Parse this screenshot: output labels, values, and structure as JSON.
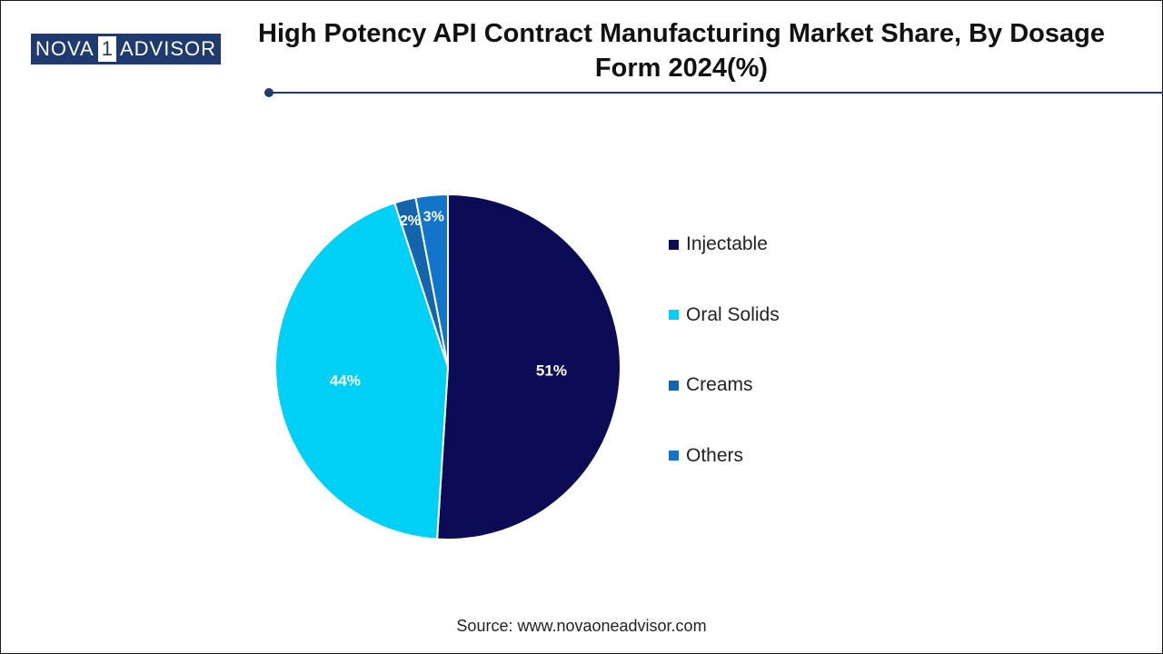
{
  "logo": {
    "part1": "NOVA",
    "digit": "1",
    "part2": "ADVISOR"
  },
  "title": "High Potency API Contract Manufacturing Market Share, By Dosage Form 2024(%)",
  "source": "Source: www.novaoneadvisor.com",
  "colors": {
    "brand": "#1f3a6e"
  },
  "chart_data": {
    "type": "pie",
    "title": "High Potency API Contract Manufacturing Market Share, By Dosage Form 2024(%)",
    "legend_position": "right",
    "slices": [
      {
        "label": "Injectable",
        "value": 51,
        "display": "51%",
        "color": "#0b0c55"
      },
      {
        "label": "Oral Solids",
        "value": 44,
        "display": "44%",
        "color": "#00d0f5"
      },
      {
        "label": "Creams",
        "value": 2,
        "display": "2%",
        "color": "#1466ac"
      },
      {
        "label": "Others",
        "value": 3,
        "display": "3%",
        "color": "#1275c9"
      }
    ]
  }
}
